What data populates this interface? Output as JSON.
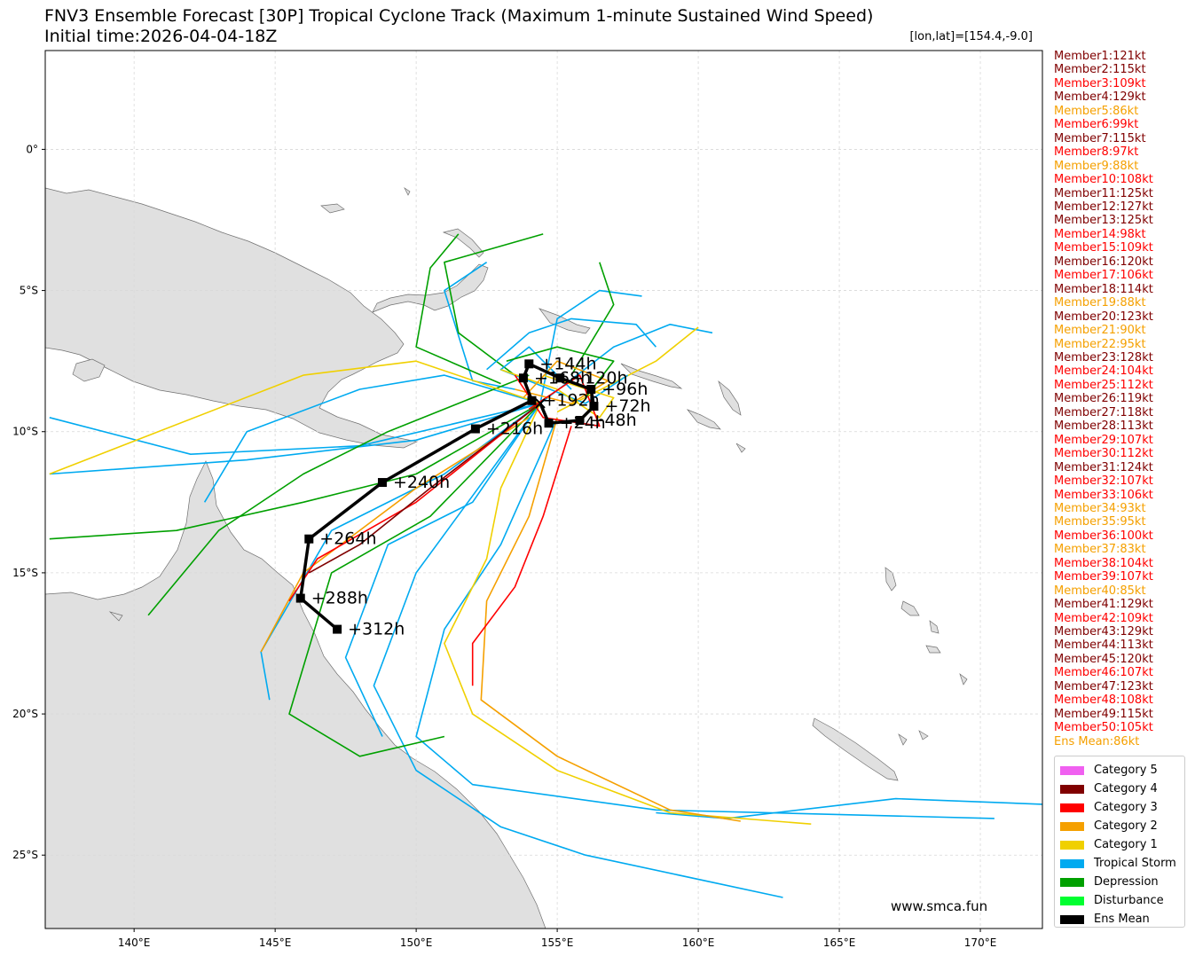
{
  "title": {
    "line1": "FNV3 Ensemble Forecast [30P] Tropical Cyclone Track (Maximum 1-minute Sustained Wind Speed)",
    "line2": "Initial time:2026-04-04-18Z",
    "coord": "[lon,lat]=[154.4,-9.0]"
  },
  "watermark": "www.smca.fun",
  "axes": {
    "x_ticks": [
      "140°E",
      "145°E",
      "150°E",
      "155°E",
      "160°E",
      "165°E",
      "170°E"
    ],
    "y_ticks": [
      "0°",
      "5°S",
      "10°S",
      "15°S",
      "20°S",
      "25°S"
    ]
  },
  "colors": {
    "cat5": "#f060f0",
    "cat4": "#800000",
    "cat3": "#ff0000",
    "cat2": "#f5a000",
    "cat1": "#f0d000",
    "ts": "#00aaf0",
    "td": "#00a000",
    "dist": "#00ff30",
    "mean": "#000000",
    "land": "#e0e0e0",
    "coast": "#707070"
  },
  "members": [
    {
      "text": "Member1:121kt",
      "color": "#800000"
    },
    {
      "text": "Member2:115kt",
      "color": "#800000"
    },
    {
      "text": "Member3:109kt",
      "color": "#ff0000"
    },
    {
      "text": "Member4:129kt",
      "color": "#800000"
    },
    {
      "text": "Member5:86kt",
      "color": "#f5a000"
    },
    {
      "text": "Member6:99kt",
      "color": "#ff0000"
    },
    {
      "text": "Member7:115kt",
      "color": "#800000"
    },
    {
      "text": "Member8:97kt",
      "color": "#ff0000"
    },
    {
      "text": "Member9:88kt",
      "color": "#f5a000"
    },
    {
      "text": "Member10:108kt",
      "color": "#ff0000"
    },
    {
      "text": "Member11:125kt",
      "color": "#800000"
    },
    {
      "text": "Member12:127kt",
      "color": "#800000"
    },
    {
      "text": "Member13:125kt",
      "color": "#800000"
    },
    {
      "text": "Member14:98kt",
      "color": "#ff0000"
    },
    {
      "text": "Member15:109kt",
      "color": "#ff0000"
    },
    {
      "text": "Member16:120kt",
      "color": "#800000"
    },
    {
      "text": "Member17:106kt",
      "color": "#ff0000"
    },
    {
      "text": "Member18:114kt",
      "color": "#800000"
    },
    {
      "text": "Member19:88kt",
      "color": "#f5a000"
    },
    {
      "text": "Member20:123kt",
      "color": "#800000"
    },
    {
      "text": "Member21:90kt",
      "color": "#f5a000"
    },
    {
      "text": "Member22:95kt",
      "color": "#f5a000"
    },
    {
      "text": "Member23:128kt",
      "color": "#800000"
    },
    {
      "text": "Member24:104kt",
      "color": "#ff0000"
    },
    {
      "text": "Member25:112kt",
      "color": "#ff0000"
    },
    {
      "text": "Member26:119kt",
      "color": "#800000"
    },
    {
      "text": "Member27:118kt",
      "color": "#800000"
    },
    {
      "text": "Member28:113kt",
      "color": "#800000"
    },
    {
      "text": "Member29:107kt",
      "color": "#ff0000"
    },
    {
      "text": "Member30:112kt",
      "color": "#ff0000"
    },
    {
      "text": "Member31:124kt",
      "color": "#800000"
    },
    {
      "text": "Member32:107kt",
      "color": "#ff0000"
    },
    {
      "text": "Member33:106kt",
      "color": "#ff0000"
    },
    {
      "text": "Member34:93kt",
      "color": "#f5a000"
    },
    {
      "text": "Member35:95kt",
      "color": "#f5a000"
    },
    {
      "text": "Member36:100kt",
      "color": "#ff0000"
    },
    {
      "text": "Member37:83kt",
      "color": "#f5a000"
    },
    {
      "text": "Member38:104kt",
      "color": "#ff0000"
    },
    {
      "text": "Member39:107kt",
      "color": "#ff0000"
    },
    {
      "text": "Member40:85kt",
      "color": "#f5a000"
    },
    {
      "text": "Member41:129kt",
      "color": "#800000"
    },
    {
      "text": "Member42:109kt",
      "color": "#ff0000"
    },
    {
      "text": "Member43:129kt",
      "color": "#800000"
    },
    {
      "text": "Member44:113kt",
      "color": "#800000"
    },
    {
      "text": "Member45:120kt",
      "color": "#800000"
    },
    {
      "text": "Member46:107kt",
      "color": "#ff0000"
    },
    {
      "text": "Member47:123kt",
      "color": "#800000"
    },
    {
      "text": "Member48:108kt",
      "color": "#ff0000"
    },
    {
      "text": "Member49:115kt",
      "color": "#800000"
    },
    {
      "text": "Member50:105kt",
      "color": "#ff0000"
    },
    {
      "text": "Ens Mean:86kt",
      "color": "#f5a000"
    }
  ],
  "legend": [
    {
      "label": "Category 5",
      "color": "#f060f0"
    },
    {
      "label": "Category 4",
      "color": "#800000"
    },
    {
      "label": "Category 3",
      "color": "#ff0000"
    },
    {
      "label": "Category 2",
      "color": "#f5a000"
    },
    {
      "label": "Category 1",
      "color": "#f0d000"
    },
    {
      "label": "Tropical Storm",
      "color": "#00aaf0"
    },
    {
      "label": "Depression",
      "color": "#00a000"
    },
    {
      "label": "Disturbance",
      "color": "#00ff30"
    },
    {
      "label": "Ens Mean",
      "color": "#000000"
    }
  ],
  "ens_mean": {
    "points": [
      {
        "lon": 154.4,
        "lat": -9.0,
        "label": ""
      },
      {
        "lon": 154.7,
        "lat": -9.7,
        "label": "+24h"
      },
      {
        "lon": 155.8,
        "lat": -9.6,
        "label": "+48h"
      },
      {
        "lon": 156.3,
        "lat": -9.1,
        "label": "+72h"
      },
      {
        "lon": 156.2,
        "lat": -8.5,
        "label": "+96h"
      },
      {
        "lon": 155.1,
        "lat": -8.1,
        "label": "+120h"
      },
      {
        "lon": 154.0,
        "lat": -7.6,
        "label": "+144h"
      },
      {
        "lon": 153.8,
        "lat": -8.1,
        "label": "+168h"
      },
      {
        "lon": 154.1,
        "lat": -8.9,
        "label": "+192h"
      },
      {
        "lon": 152.1,
        "lat": -9.9,
        "label": "+216h"
      },
      {
        "lon": 148.8,
        "lat": -11.8,
        "label": "+240h"
      },
      {
        "lon": 146.2,
        "lat": -13.8,
        "label": "+264h"
      },
      {
        "lon": 145.9,
        "lat": -15.9,
        "label": "+288h"
      },
      {
        "lon": 147.2,
        "lat": -17.0,
        "label": "+312h"
      }
    ]
  },
  "member_tracks": [
    {
      "color": "ts",
      "pts": [
        [
          154.4,
          -9.0
        ],
        [
          150.0,
          -10.3
        ],
        [
          144.0,
          -11.0
        ],
        [
          137.0,
          -11.5
        ]
      ]
    },
    {
      "color": "ts",
      "pts": [
        [
          154.4,
          -9.0
        ],
        [
          148.0,
          -10.5
        ],
        [
          142.0,
          -10.8
        ],
        [
          137.0,
          -9.5
        ]
      ]
    },
    {
      "color": "ts",
      "pts": [
        [
          154.4,
          -9.0
        ],
        [
          151.0,
          -11.5
        ],
        [
          147.0,
          -13.5
        ],
        [
          144.5,
          -17.8
        ],
        [
          144.8,
          -19.5
        ]
      ]
    },
    {
      "color": "ts",
      "pts": [
        [
          154.4,
          -9.0
        ],
        [
          152.0,
          -12.5
        ],
        [
          149.0,
          -14.0
        ],
        [
          147.5,
          -18.0
        ],
        [
          148.8,
          -20.8
        ]
      ]
    },
    {
      "color": "ts",
      "pts": [
        [
          155.0,
          -9.5
        ],
        [
          153.0,
          -14.0
        ],
        [
          151.0,
          -17.0
        ],
        [
          150.0,
          -20.8
        ],
        [
          152.0,
          -22.5
        ],
        [
          158.5,
          -23.4
        ],
        [
          170.5,
          -23.7
        ]
      ]
    },
    {
      "color": "ts",
      "pts": [
        [
          154.4,
          -9.0
        ],
        [
          150.0,
          -15.0
        ],
        [
          148.5,
          -19.0
        ],
        [
          150.0,
          -22.0
        ],
        [
          153.0,
          -24.0
        ],
        [
          156.0,
          -25.0
        ],
        [
          163.0,
          -26.5
        ]
      ]
    },
    {
      "color": "ts",
      "pts": [
        [
          158.5,
          -23.5
        ],
        [
          161.0,
          -23.7
        ],
        [
          167.0,
          -23.0
        ],
        [
          172.2,
          -23.2
        ]
      ]
    },
    {
      "color": "ts",
      "pts": [
        [
          154.4,
          -9.0
        ],
        [
          157.0,
          -7.0
        ],
        [
          159.0,
          -6.2
        ],
        [
          160.5,
          -6.5
        ]
      ]
    },
    {
      "color": "ts",
      "pts": [
        [
          154.4,
          -9.0
        ],
        [
          155.0,
          -6.0
        ],
        [
          156.5,
          -5.0
        ],
        [
          158.0,
          -5.2
        ]
      ]
    },
    {
      "color": "ts",
      "pts": [
        [
          154.4,
          -9.0
        ],
        [
          151.0,
          -8.0
        ],
        [
          148.0,
          -8.5
        ],
        [
          144.0,
          -10.0
        ],
        [
          142.5,
          -12.5
        ]
      ]
    },
    {
      "color": "ts",
      "pts": [
        [
          153.5,
          -8.5
        ],
        [
          152.0,
          -8.2
        ],
        [
          151.0,
          -5.0
        ],
        [
          152.5,
          -4.0
        ]
      ]
    },
    {
      "color": "td",
      "pts": [
        [
          154.4,
          -9.0
        ],
        [
          150.0,
          -11.5
        ],
        [
          146.0,
          -12.5
        ],
        [
          141.5,
          -13.5
        ],
        [
          137.0,
          -13.8
        ]
      ]
    },
    {
      "color": "td",
      "pts": [
        [
          154.4,
          -9.0
        ],
        [
          150.5,
          -13.0
        ],
        [
          147.0,
          -15.0
        ],
        [
          145.5,
          -20.0
        ],
        [
          148.0,
          -21.5
        ],
        [
          151.0,
          -20.8
        ]
      ]
    },
    {
      "color": "td",
      "pts": [
        [
          153.5,
          -8.0
        ],
        [
          151.5,
          -6.5
        ],
        [
          151.0,
          -4.0
        ],
        [
          154.5,
          -3.0
        ]
      ]
    },
    {
      "color": "td",
      "pts": [
        [
          153.0,
          -8.3
        ],
        [
          150.0,
          -7.0
        ],
        [
          150.5,
          -4.2
        ],
        [
          151.5,
          -3.0
        ]
      ]
    },
    {
      "color": "td",
      "pts": [
        [
          154.0,
          -8.0
        ],
        [
          149.0,
          -10.0
        ],
        [
          146.0,
          -11.5
        ],
        [
          143.0,
          -13.5
        ],
        [
          140.5,
          -16.5
        ]
      ]
    },
    {
      "color": "td",
      "pts": [
        [
          155.5,
          -8.0
        ],
        [
          157.0,
          -5.5
        ],
        [
          156.5,
          -4.0
        ]
      ]
    },
    {
      "color": "cat1",
      "pts": [
        [
          154.4,
          -9.0
        ],
        [
          153.0,
          -12.0
        ],
        [
          152.5,
          -14.5
        ],
        [
          151.0,
          -17.5
        ],
        [
          152.0,
          -20.0
        ],
        [
          155.0,
          -22.0
        ],
        [
          159.0,
          -23.5
        ],
        [
          164.0,
          -23.9
        ]
      ]
    },
    {
      "color": "cat1",
      "pts": [
        [
          154.4,
          -9.0
        ],
        [
          150.0,
          -7.5
        ],
        [
          146.0,
          -8.0
        ],
        [
          137.0,
          -11.5
        ]
      ]
    },
    {
      "color": "cat1",
      "pts": [
        [
          155.0,
          -9.3
        ],
        [
          158.5,
          -7.5
        ],
        [
          160.0,
          -6.3
        ]
      ]
    },
    {
      "color": "cat2",
      "pts": [
        [
          155.0,
          -9.5
        ],
        [
          154.0,
          -13.0
        ],
        [
          152.5,
          -16.0
        ],
        [
          152.3,
          -19.5
        ],
        [
          155.0,
          -21.5
        ],
        [
          159.0,
          -23.4
        ],
        [
          161.5,
          -23.8
        ]
      ]
    },
    {
      "color": "cat2",
      "pts": [
        [
          154.0,
          -9.5
        ],
        [
          150.0,
          -12.0
        ],
        [
          146.0,
          -15.0
        ],
        [
          144.5,
          -17.8
        ]
      ]
    },
    {
      "color": "cat3",
      "pts": [
        [
          155.5,
          -9.8
        ],
        [
          154.5,
          -13.0
        ],
        [
          153.5,
          -15.5
        ],
        [
          152.0,
          -17.5
        ],
        [
          152.0,
          -19.0
        ]
      ]
    },
    {
      "color": "cat3",
      "pts": [
        [
          154.4,
          -9.0
        ],
        [
          150.0,
          -12.5
        ],
        [
          146.5,
          -14.5
        ],
        [
          145.5,
          -16.0
        ]
      ]
    },
    {
      "color": "cat4",
      "pts": [
        [
          154.4,
          -9.0
        ],
        [
          150.5,
          -12.0
        ],
        [
          148.0,
          -14.0
        ],
        [
          146.2,
          -15.0
        ]
      ]
    },
    {
      "color": "ts",
      "pts": [
        [
          155.5,
          -8.5
        ],
        [
          154.0,
          -7.0
        ],
        [
          153.0,
          -7.8
        ],
        [
          156.0,
          -9.0
        ],
        [
          157.5,
          -8.0
        ]
      ]
    },
    {
      "color": "cat1",
      "pts": [
        [
          153.0,
          -7.8
        ],
        [
          155.0,
          -8.5
        ],
        [
          156.5,
          -9.5
        ],
        [
          157.0,
          -8.8
        ],
        [
          154.5,
          -8.0
        ]
      ]
    },
    {
      "color": "cat2",
      "pts": [
        [
          153.5,
          -8.5
        ],
        [
          155.5,
          -9.0
        ],
        [
          156.8,
          -8.2
        ],
        [
          155.0,
          -7.5
        ],
        [
          153.8,
          -8.8
        ]
      ]
    },
    {
      "color": "cat3",
      "pts": [
        [
          154.0,
          -9.2
        ],
        [
          155.8,
          -8.0
        ],
        [
          156.5,
          -9.8
        ],
        [
          154.5,
          -9.5
        ],
        [
          153.5,
          -8.0
        ]
      ]
    },
    {
      "color": "td",
      "pts": [
        [
          153.2,
          -7.5
        ],
        [
          155.0,
          -7.0
        ],
        [
          157.0,
          -7.5
        ],
        [
          156.0,
          -8.8
        ]
      ]
    },
    {
      "color": "ts",
      "pts": [
        [
          152.5,
          -7.8
        ],
        [
          154.0,
          -6.5
        ],
        [
          155.5,
          -6.0
        ],
        [
          157.8,
          -6.2
        ],
        [
          158.5,
          -7.0
        ]
      ]
    }
  ]
}
